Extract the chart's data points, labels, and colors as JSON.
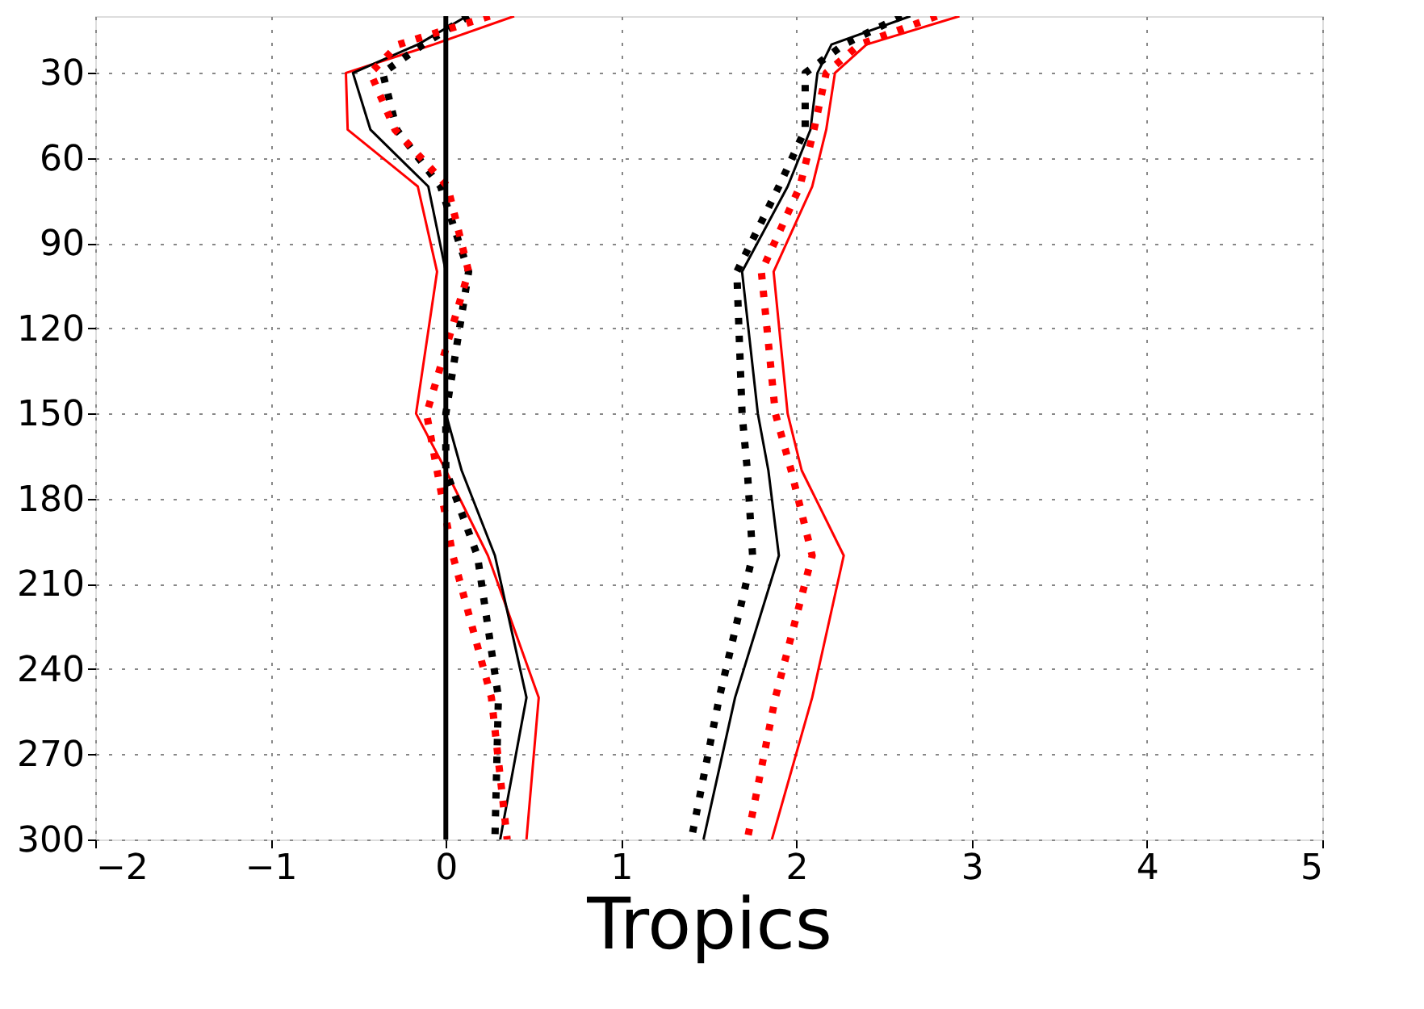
{
  "chart_data": {
    "type": "line",
    "orientation": "horizontal",
    "xlabel": "Tropics",
    "x": [
      10,
      20,
      30,
      50,
      70,
      100,
      150,
      170,
      200,
      250,
      300
    ],
    "xlim": [
      -2,
      5
    ],
    "xticks": [
      -2,
      -1,
      0,
      1,
      2,
      3,
      4,
      5
    ],
    "ylim": [
      300,
      10
    ],
    "yticks": [
      30,
      60,
      90,
      120,
      150,
      180,
      210,
      240,
      270,
      300
    ],
    "grid": true,
    "marker": "none",
    "ref_lines": [
      {
        "axis": "x",
        "value": 0,
        "color": "#000000"
      }
    ],
    "series": [
      {
        "color": "#ff0000",
        "line_style": "solid",
        "values": [
          0.39,
          -0.07,
          -0.57,
          -0.56,
          -0.16,
          -0.05,
          -0.17,
          0.0,
          0.24,
          0.53,
          0.46
        ]
      },
      {
        "color": "#000000",
        "line_style": "solid",
        "values": [
          0.12,
          -0.16,
          -0.53,
          -0.43,
          -0.1,
          0.0,
          0.0,
          0.09,
          0.28,
          0.46,
          0.31
        ]
      },
      {
        "color": "#000000",
        "line_style": "dotted",
        "values": [
          0.13,
          -0.13,
          -0.36,
          -0.28,
          -0.03,
          0.13,
          0.0,
          0.0,
          0.18,
          0.3,
          0.28
        ]
      },
      {
        "color": "#ff0000",
        "line_style": "dotted",
        "values": [
          0.25,
          -0.27,
          -0.43,
          -0.29,
          0.01,
          0.13,
          -0.11,
          -0.05,
          0.04,
          0.26,
          0.35
        ]
      },
      {
        "color": "#000000",
        "line_style": "solid",
        "values": [
          2.65,
          2.2,
          2.12,
          2.08,
          1.95,
          1.69,
          1.78,
          1.84,
          1.9,
          1.65,
          1.47
        ]
      },
      {
        "color": "#000000",
        "line_style": "dotted",
        "values": [
          2.6,
          2.27,
          2.05,
          2.05,
          1.9,
          1.66,
          1.69,
          1.72,
          1.75,
          1.56,
          1.4
        ]
      },
      {
        "color": "#ff0000",
        "line_style": "dotted",
        "values": [
          2.8,
          2.36,
          2.17,
          2.1,
          2.02,
          1.8,
          1.88,
          1.97,
          2.09,
          1.88,
          1.72
        ]
      },
      {
        "color": "#ff0000",
        "line_style": "solid",
        "values": [
          2.93,
          2.4,
          2.22,
          2.17,
          2.09,
          1.87,
          1.95,
          2.03,
          2.27,
          2.09,
          1.86
        ]
      }
    ]
  }
}
